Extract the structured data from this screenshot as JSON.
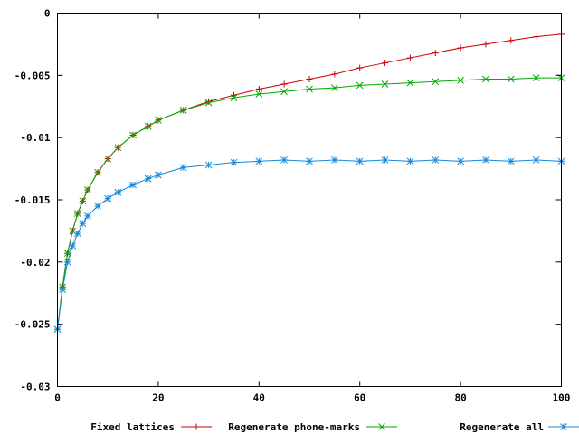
{
  "chart_data": {
    "type": "line",
    "title": "",
    "xlabel": "",
    "ylabel": "",
    "xlim": [
      0,
      100
    ],
    "ylim": [
      -0.03,
      0
    ],
    "xticks": [
      0,
      20,
      40,
      60,
      80,
      100
    ],
    "xtick_labels": [
      "0",
      "20",
      "40",
      "60",
      "80",
      "100"
    ],
    "yticks": [
      0,
      -0.005,
      -0.01,
      -0.015,
      -0.02,
      -0.025,
      -0.03
    ],
    "ytick_labels": [
      "0",
      "-0.005",
      "-0.01",
      "-0.015",
      "-0.02",
      "-0.025",
      "-0.03"
    ],
    "grid": false,
    "legend_position": "bottom",
    "series": [
      {
        "name": "Fixed lattices",
        "color": "#cc0000",
        "marker": "plus",
        "x": [
          0,
          1,
          2,
          3,
          4,
          5,
          6,
          8,
          10,
          12,
          15,
          18,
          20,
          25,
          30,
          35,
          40,
          45,
          50,
          55,
          60,
          65,
          70,
          75,
          80,
          85,
          90,
          95,
          100
        ],
        "y": [
          -0.0254,
          -0.022,
          -0.0193,
          -0.0175,
          -0.0161,
          -0.0151,
          -0.0142,
          -0.0128,
          -0.0117,
          -0.0108,
          -0.0098,
          -0.0091,
          -0.0086,
          -0.0078,
          -0.0071,
          -0.0066,
          -0.0061,
          -0.0057,
          -0.0053,
          -0.0049,
          -0.0044,
          -0.004,
          -0.0036,
          -0.0032,
          -0.0028,
          -0.0025,
          -0.0022,
          -0.0019,
          -0.0017
        ]
      },
      {
        "name": "Regenerate phone-marks",
        "color": "#00aa00",
        "marker": "x",
        "x": [
          0,
          1,
          2,
          3,
          4,
          5,
          6,
          8,
          10,
          12,
          15,
          18,
          20,
          25,
          30,
          35,
          40,
          45,
          50,
          55,
          60,
          65,
          70,
          75,
          80,
          85,
          90,
          95,
          100
        ],
        "y": [
          -0.0254,
          -0.022,
          -0.0193,
          -0.0175,
          -0.0161,
          -0.0151,
          -0.0142,
          -0.0128,
          -0.0117,
          -0.0108,
          -0.0098,
          -0.0091,
          -0.0086,
          -0.0078,
          -0.0072,
          -0.0068,
          -0.0065,
          -0.0063,
          -0.0061,
          -0.006,
          -0.0058,
          -0.0057,
          -0.0056,
          -0.0055,
          -0.0054,
          -0.0053,
          -0.0053,
          -0.0052,
          -0.0052
        ]
      },
      {
        "name": "Regenerate all",
        "color": "#1188dd",
        "marker": "star",
        "x": [
          0,
          1,
          2,
          3,
          4,
          5,
          6,
          8,
          10,
          12,
          15,
          18,
          20,
          25,
          30,
          35,
          40,
          45,
          50,
          55,
          60,
          65,
          70,
          75,
          80,
          85,
          90,
          95,
          100
        ],
        "y": [
          -0.0254,
          -0.0222,
          -0.02,
          -0.0187,
          -0.0177,
          -0.0169,
          -0.0163,
          -0.0155,
          -0.0149,
          -0.0144,
          -0.0138,
          -0.0133,
          -0.013,
          -0.0124,
          -0.0122,
          -0.012,
          -0.0119,
          -0.0118,
          -0.0119,
          -0.0118,
          -0.0119,
          -0.0118,
          -0.0119,
          -0.0118,
          -0.0119,
          -0.0118,
          -0.0119,
          -0.0118,
          -0.0119
        ]
      }
    ]
  }
}
